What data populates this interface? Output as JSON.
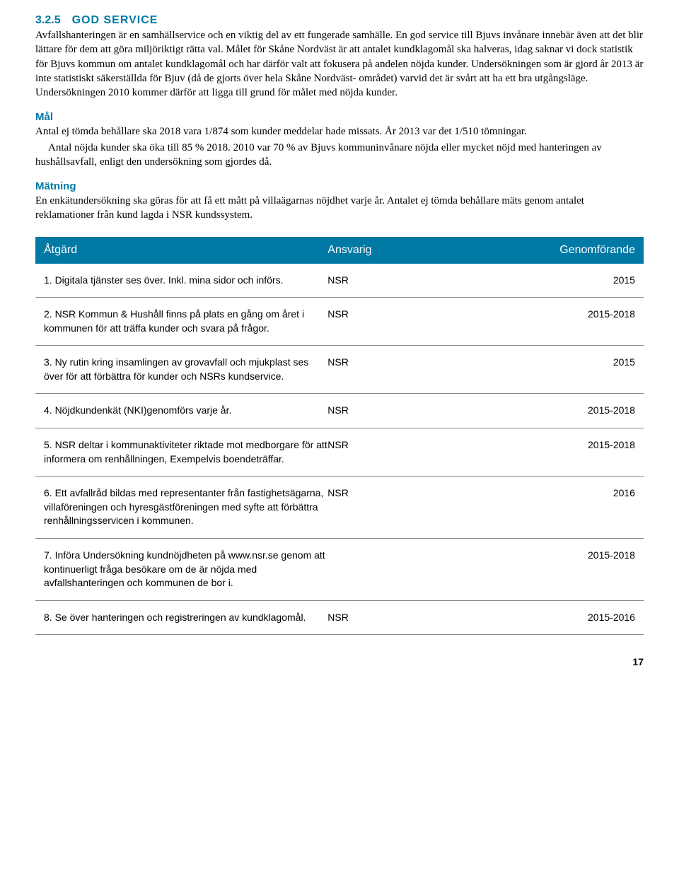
{
  "section": {
    "number": "3.2.5",
    "title": "GOD SERVICE",
    "intro": "Avfallshanteringen är en samhällservice och en viktig del av ett fungerade samhälle. En god service till Bjuvs invånare innebär även att det blir lättare för dem att göra miljöriktigt rätta val. Målet för Skåne Nordväst är att antalet kundklagomål ska halveras, idag saknar vi dock statistik för Bjuvs kommun om antalet kundklagomål och har därför valt att fokusera på andelen nöjda kunder. Undersökningen som är gjord år 2013 är inte statistiskt säkerställda för Bjuv (då de gjorts över hela Skåne Nordväst- området) varvid det är svårt att ha ett bra utgångsläge. Undersökningen 2010 kommer därför att ligga till grund för målet med nöjda kunder."
  },
  "mal": {
    "heading": "Mål",
    "p1": "Antal ej tömda behållare ska 2018 vara 1/874 som kunder meddelar hade missats. År 2013 var det 1/510 tömningar.",
    "p2": "Antal nöjda kunder ska öka till 85 % 2018. 2010 var 70 % av Bjuvs kommuninvånare nöjda eller mycket nöjd med hanteringen av hushållsavfall, enligt den undersökning som gjordes då."
  },
  "matning": {
    "heading": "Mätning",
    "p1": "En enkätundersökning ska göras för att få ett mått på villaägarnas nöjdhet varje år. Antalet ej tömda behållare mäts genom antalet reklamationer från kund lagda i NSR kundssystem."
  },
  "table": {
    "header": {
      "col1": "Åtgärd",
      "col2": "Ansvarig",
      "col3": "Genomförande"
    },
    "rows": [
      {
        "atgard": "1. Digitala tjänster ses över. Inkl. mina sidor och införs.",
        "ansvarig": "NSR",
        "genom": "2015"
      },
      {
        "atgard": "2. NSR Kommun & Hushåll finns på plats en gång om året i kommunen för att träffa kunder och svara på frågor.",
        "ansvarig": "NSR",
        "genom": "2015-2018"
      },
      {
        "atgard": "3. Ny rutin kring insamlingen av grovavfall och mjukplast ses över för att förbättra för kunder och NSRs kundservice.",
        "ansvarig": "NSR",
        "genom": "2015"
      },
      {
        "atgard": "4. Nöjdkundenkät (NKI)genomförs varje år.",
        "ansvarig": "NSR",
        "genom": "2015-2018"
      },
      {
        "atgard": "5. NSR deltar i kommunaktiviteter riktade mot medborgare för att informera om renhållningen, Exempelvis boendeträffar.",
        "ansvarig": "NSR",
        "genom": "2015-2018"
      },
      {
        "atgard": "6. Ett avfallråd bildas med representanter från fastighetsägarna, villaföreningen och hyresgästföreningen med syfte att förbättra renhållningsservicen i kommunen.",
        "ansvarig": "NSR",
        "genom": "2016"
      },
      {
        "atgard": "7. Införa Undersökning kundnöjdheten på www.nsr.se genom att kontinuerligt fråga besökare om de är nöjda med avfallshanteringen och kommunen de bor i.",
        "ansvarig": "",
        "genom": "2015-2018"
      },
      {
        "atgard": "8. Se över hanteringen och registreringen av kundklagomål.",
        "ansvarig": "NSR",
        "genom": "2015-2016"
      }
    ]
  },
  "page_number": "17"
}
